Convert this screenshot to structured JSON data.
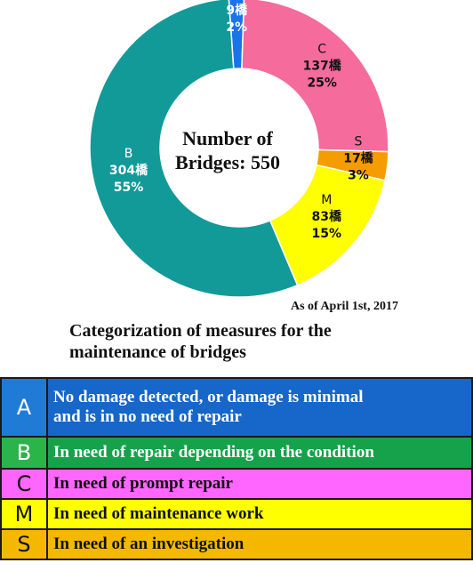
{
  "chart_data": {
    "type": "pie",
    "center_label": [
      "Number of",
      "Bridges: 550"
    ],
    "categories": [
      "A",
      "C",
      "S",
      "M",
      "B"
    ],
    "counts": [
      "9橋",
      "137橋",
      "17橋",
      "83橋",
      "304橋"
    ],
    "values": [
      9,
      137,
      17,
      83,
      304
    ],
    "percent_labels": [
      "2%",
      "25%",
      "3%",
      "15%",
      "55%"
    ],
    "colors": [
      "#1a73e8",
      "#f56b9b",
      "#f59c00",
      "#ffff00",
      "#129a99"
    ],
    "total": 550
  },
  "as_of": "As of April 1st, 2017",
  "legend": {
    "title_lines": [
      "Categorization of measures for the",
      "maintenance of bridges"
    ],
    "rows": [
      {
        "code": "A",
        "description": [
          "No damage detected, or damage is minimal",
          "and is in no need of repair"
        ],
        "code_bg": "#1f7bd6",
        "code_color": "#ffffff",
        "bg": "#1766c9",
        "text_color": "#ffffff"
      },
      {
        "code": "B",
        "description": [
          "In need of repair depending on the condition"
        ],
        "code_bg": "#2bb44a",
        "code_color": "#ffffff",
        "bg": "#15a24a",
        "text_color": "#ffffff"
      },
      {
        "code": "C",
        "description": [
          "In need of prompt repair"
        ],
        "code_bg": "#ff66ff",
        "code_color": "#111111",
        "bg": "#ff66ff",
        "text_color": "#111111"
      },
      {
        "code": "M",
        "description": [
          "In need of maintenance work"
        ],
        "code_bg": "#ffff00",
        "code_color": "#111111",
        "bg": "#ffff00",
        "text_color": "#111111"
      },
      {
        "code": "S",
        "description": [
          "In need of an investigation"
        ],
        "code_bg": "#f5b800",
        "code_color": "#111111",
        "bg": "#f5b800",
        "text_color": "#111111"
      }
    ]
  }
}
